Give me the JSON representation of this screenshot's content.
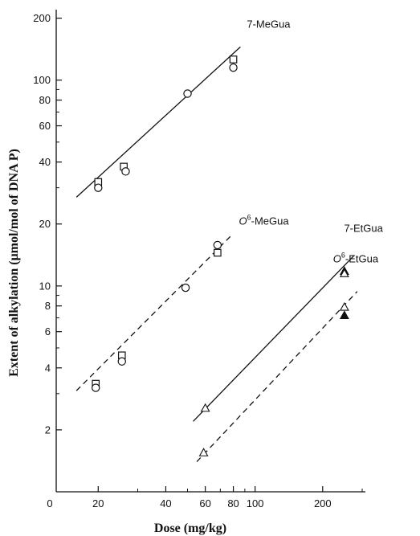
{
  "chart_data": {
    "type": "scatter",
    "xlabel": "Dose (mg/kg)",
    "ylabel": "Extent of alkylation (μmol/mol of DNA P)",
    "x_scale": "log",
    "y_scale": "log",
    "xlim": [
      13,
      310
    ],
    "ylim": [
      1,
      220
    ],
    "x_ticks": [
      20,
      40,
      60,
      80,
      100,
      200
    ],
    "x_tick_labels": [
      "20",
      "40",
      "60",
      "80",
      "100",
      "200"
    ],
    "x_axis_origin_label": "0",
    "y_ticks": [
      2,
      4,
      6,
      8,
      10,
      20,
      40,
      60,
      80,
      100,
      200
    ],
    "y_tick_labels": [
      "2",
      "4",
      "6",
      "8",
      "10",
      "20",
      "40",
      "60",
      "80",
      "100",
      "200"
    ],
    "grid": false,
    "series": [
      {
        "name": "7-MeGua",
        "label_text": "7-MeGua",
        "label_sup": "",
        "label_suffix": "",
        "line_style": "solid",
        "fit_line": [
          [
            16,
            27
          ],
          [
            86,
            145
          ]
        ],
        "points": [
          {
            "x": 20,
            "y": 32,
            "marker": "square"
          },
          {
            "x": 20,
            "y": 30,
            "marker": "circle"
          },
          {
            "x": 26,
            "y": 38,
            "marker": "square"
          },
          {
            "x": 26.5,
            "y": 36,
            "marker": "circle"
          },
          {
            "x": 50,
            "y": 86,
            "marker": "circle"
          },
          {
            "x": 80,
            "y": 126,
            "marker": "square"
          },
          {
            "x": 80,
            "y": 115,
            "marker": "circle"
          }
        ]
      },
      {
        "name": "O6-MeGua",
        "label_text": "O",
        "label_sup": "6",
        "label_suffix": "-MeGua",
        "line_style": "dashed",
        "fit_line": [
          [
            16,
            3.1
          ],
          [
            78,
            17.5
          ]
        ],
        "points": [
          {
            "x": 19.5,
            "y": 3.35,
            "marker": "square"
          },
          {
            "x": 19.5,
            "y": 3.2,
            "marker": "circle"
          },
          {
            "x": 25.5,
            "y": 4.6,
            "marker": "square"
          },
          {
            "x": 25.5,
            "y": 4.3,
            "marker": "circle"
          },
          {
            "x": 49,
            "y": 9.8,
            "marker": "circle"
          },
          {
            "x": 68,
            "y": 14.5,
            "marker": "square"
          },
          {
            "x": 68,
            "y": 15.8,
            "marker": "circle"
          }
        ]
      },
      {
        "name": "7-EtGua",
        "label_text": "7-EtGua",
        "label_sup": "",
        "label_suffix": "",
        "line_style": "solid",
        "fit_line": [
          [
            53,
            2.2
          ],
          [
            275,
            14
          ]
        ],
        "points": [
          {
            "x": 60,
            "y": 2.55,
            "marker": "triangle-open"
          },
          {
            "x": 250,
            "y": 11.8,
            "marker": "triangle-filled"
          },
          {
            "x": 250,
            "y": 11.5,
            "marker": "triangle-open"
          }
        ]
      },
      {
        "name": "O6-EtGua",
        "label_text": "O",
        "label_sup": "6",
        "label_suffix": "-EtGua",
        "line_style": "dashed",
        "fit_line": [
          [
            55,
            1.4
          ],
          [
            285,
            9.4
          ]
        ],
        "points": [
          {
            "x": 59,
            "y": 1.55,
            "marker": "triangle-open"
          },
          {
            "x": 250,
            "y": 7.9,
            "marker": "triangle-open"
          },
          {
            "x": 250,
            "y": 7.2,
            "marker": "triangle-filled"
          }
        ]
      }
    ]
  }
}
